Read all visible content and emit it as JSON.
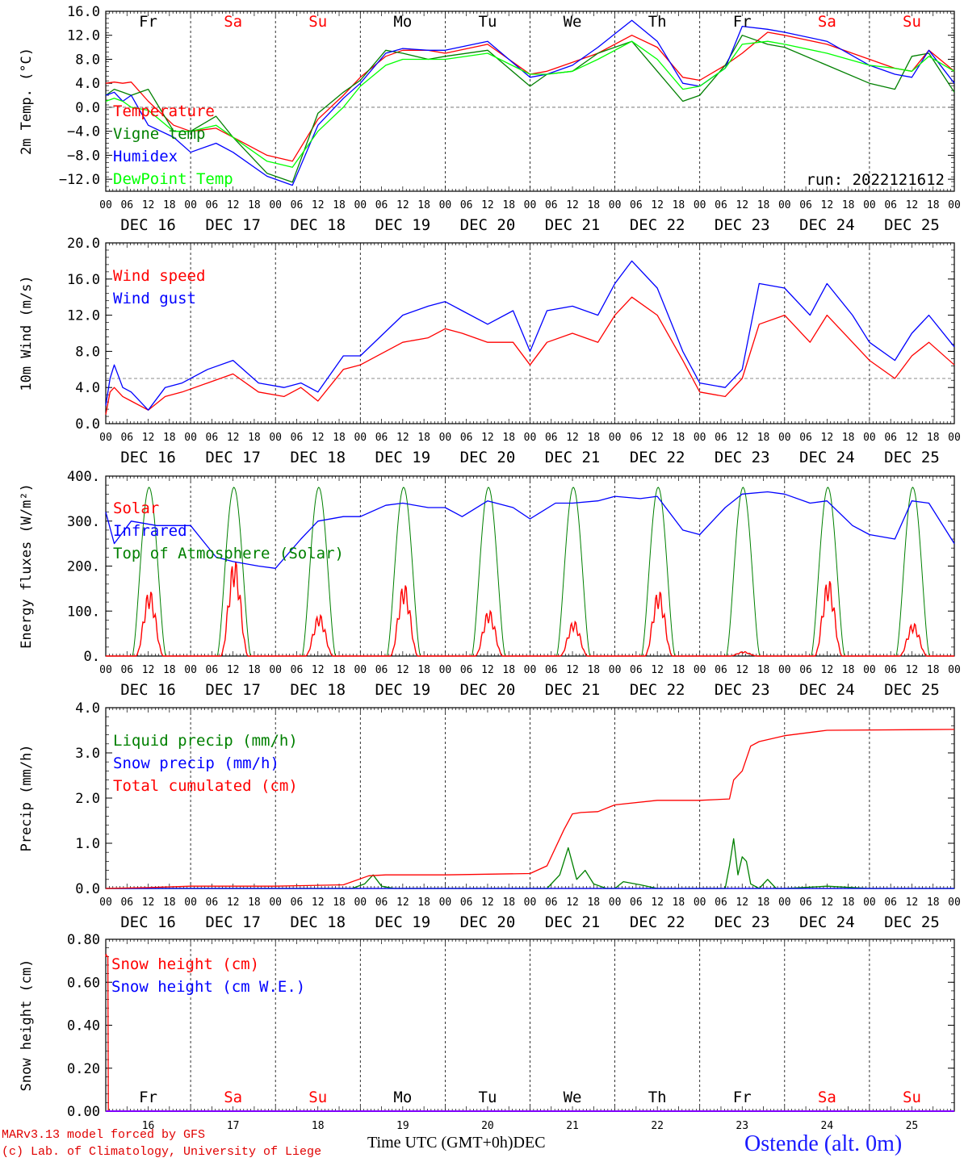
{
  "chart_data": {
    "type": "line",
    "run_label": "run: 2022121612",
    "time_axis": {
      "hours": [
        "00",
        "06",
        "12",
        "18"
      ],
      "final_hour": "00",
      "dates": [
        "DEC 16",
        "DEC 17",
        "DEC 18",
        "DEC 19",
        "DEC 20",
        "DEC 21",
        "DEC 22",
        "DEC 23",
        "DEC 24",
        "DEC 25"
      ],
      "weekdays": [
        "Fr",
        "Sa",
        "Su",
        "Mo",
        "Tu",
        "We",
        "Th",
        "Fr",
        "Sa",
        "Su"
      ],
      "weekend_flags": [
        false,
        true,
        true,
        false,
        false,
        false,
        false,
        false,
        true,
        true
      ],
      "day_numbers": [
        "16",
        "17",
        "18",
        "19",
        "20",
        "21",
        "22",
        "23",
        "24",
        "25"
      ],
      "month": "DEC",
      "xlabel": "Time UTC (GMT+0h)"
    },
    "panels": [
      {
        "ylabel": "2m Temp. (°C)",
        "ylim": [
          -14,
          16
        ],
        "ticks": [
          "16.0",
          "12.0",
          "8.0",
          "4.0",
          "0.0",
          "−4.0",
          "−8.0",
          "−12.0"
        ],
        "tick_values": [
          16,
          12,
          8,
          4,
          0,
          -4,
          -8,
          -12
        ],
        "ref_line": 0,
        "series": [
          {
            "name": "Temperature",
            "color": "#ff0000",
            "x": [
              0,
              0.1,
              0.2,
              0.3,
              0.5,
              0.8,
              1.0,
              1.3,
              1.5,
              1.9,
              2.2,
              2.5,
              2.8,
              3.0,
              3.3,
              3.5,
              3.8,
              4.0,
              4.5,
              5.0,
              5.2,
              5.5,
              5.8,
              6.2,
              6.5,
              6.8,
              7.0,
              7.3,
              7.5,
              7.8,
              8.0,
              8.5,
              9.0,
              9.3,
              9.5,
              9.7,
              10.0
            ],
            "y": [
              4,
              4.2,
              4.0,
              4.2,
              1.0,
              -3.0,
              -4.0,
              -3.5,
              -5.0,
              -8.0,
              -9.0,
              -2.0,
              2.0,
              5.0,
              8.5,
              9.5,
              9.5,
              9.0,
              10.5,
              5.5,
              6.0,
              7.5,
              9.0,
              12.0,
              10.0,
              5.0,
              4.5,
              7.0,
              9.0,
              12.5,
              12.0,
              10.5,
              8.0,
              6.5,
              6.0,
              9.5,
              6.0
            ]
          },
          {
            "name": "Vigne temp",
            "color": "#008000",
            "x": [
              0,
              0.1,
              0.2,
              0.3,
              0.5,
              0.8,
              1.0,
              1.3,
              1.5,
              1.9,
              2.2,
              2.5,
              2.8,
              3.0,
              3.3,
              3.5,
              3.8,
              4.0,
              4.5,
              5.0,
              5.2,
              5.5,
              5.8,
              6.2,
              6.5,
              6.8,
              7.0,
              7.3,
              7.5,
              7.8,
              8.0,
              8.5,
              9.0,
              9.3,
              9.5,
              9.7,
              10.0
            ],
            "y": [
              2,
              3.0,
              2.5,
              2.0,
              3.0,
              -4.0,
              -4.0,
              -1.5,
              -5.0,
              -11.0,
              -12.5,
              -1.0,
              2.5,
              4.5,
              9.5,
              9.0,
              8.0,
              8.5,
              9.5,
              3.5,
              5.5,
              6.0,
              9.0,
              11.0,
              6.0,
              1.0,
              2.0,
              7.0,
              12.0,
              10.5,
              10.0,
              7.0,
              4.0,
              3.0,
              8.5,
              9.0,
              2.5
            ]
          },
          {
            "name": "Humidex",
            "color": "#0000ff",
            "x": [
              0,
              0.1,
              0.2,
              0.3,
              0.5,
              0.8,
              1.0,
              1.3,
              1.5,
              1.9,
              2.2,
              2.5,
              2.8,
              3.0,
              3.3,
              3.5,
              3.8,
              4.0,
              4.5,
              5.0,
              5.2,
              5.5,
              5.8,
              6.2,
              6.5,
              6.8,
              7.0,
              7.3,
              7.5,
              7.8,
              8.0,
              8.5,
              9.0,
              9.3,
              9.5,
              9.7,
              10.0
            ],
            "y": [
              2,
              2.5,
              1.0,
              2.0,
              -3.0,
              -5.0,
              -7.5,
              -6.0,
              -7.5,
              -11.5,
              -13.0,
              -3.0,
              1.5,
              4.0,
              9.0,
              9.8,
              9.5,
              9.5,
              11.0,
              5.0,
              5.5,
              7.0,
              10.0,
              14.5,
              11.0,
              4.0,
              3.5,
              6.5,
              13.5,
              13.0,
              12.5,
              11.0,
              7.0,
              5.5,
              5.0,
              9.5,
              4.0
            ]
          },
          {
            "name": "DewPoint Temp",
            "color": "#00ff00",
            "x": [
              0,
              0.1,
              0.2,
              0.3,
              0.5,
              0.8,
              1.0,
              1.3,
              1.5,
              1.9,
              2.2,
              2.5,
              2.8,
              3.0,
              3.3,
              3.5,
              3.8,
              4.0,
              4.5,
              5.0,
              5.2,
              5.5,
              5.8,
              6.2,
              6.5,
              6.8,
              7.0,
              7.3,
              7.5,
              7.8,
              8.0,
              8.5,
              9.0,
              9.3,
              9.5,
              9.7,
              10.0
            ],
            "y": [
              1,
              1.5,
              1.0,
              0.0,
              -0.5,
              -4.0,
              -4.0,
              -3.0,
              -5.0,
              -9.0,
              -10.0,
              -4.0,
              0.0,
              3.5,
              7.0,
              8.0,
              8.0,
              8.0,
              9.0,
              5.5,
              5.5,
              6.0,
              8.0,
              11.0,
              8.0,
              3.0,
              3.5,
              6.5,
              10.5,
              11.0,
              10.5,
              9.0,
              7.0,
              6.5,
              6.0,
              8.5,
              6.0
            ]
          }
        ],
        "legend": [
          "Temperature",
          "Vigne temp",
          "Humidex",
          "DewPoint Temp"
        ],
        "legend_colors": [
          "#ff0000",
          "#008000",
          "#0000ff",
          "#00ff00"
        ]
      },
      {
        "ylabel": "10m Wind (m/s)",
        "ylim": [
          0,
          20
        ],
        "ticks": [
          "20.0",
          "16.0",
          "12.0",
          "8.0",
          "4.0",
          "0.0"
        ],
        "tick_values": [
          20,
          16,
          12,
          8,
          4,
          0
        ],
        "ref_line": 5,
        "series": [
          {
            "name": "Wind speed",
            "color": "#ff0000",
            "x": [
              0,
              0.05,
              0.1,
              0.2,
              0.3,
              0.5,
              0.7,
              0.9,
              1.2,
              1.5,
              1.8,
              2.1,
              2.3,
              2.5,
              2.8,
              3.0,
              3.5,
              3.8,
              4.0,
              4.2,
              4.5,
              4.8,
              5.0,
              5.2,
              5.5,
              5.8,
              6.0,
              6.2,
              6.5,
              6.8,
              7.0,
              7.3,
              7.5,
              7.7,
              8.0,
              8.3,
              8.5,
              8.8,
              9.0,
              9.3,
              9.5,
              9.7,
              10.0
            ],
            "y": [
              1,
              3.5,
              4.0,
              3.0,
              2.5,
              1.5,
              3.0,
              3.5,
              4.5,
              5.5,
              3.5,
              3.0,
              4.0,
              2.5,
              6.0,
              6.5,
              9.0,
              9.5,
              10.5,
              10.0,
              9.0,
              9.0,
              6.5,
              9.0,
              10.0,
              9.0,
              12.0,
              14.0,
              12.0,
              7.0,
              3.5,
              3.0,
              5.0,
              11.0,
              12.0,
              9.0,
              12.0,
              9.0,
              7.0,
              5.0,
              7.5,
              9.0,
              6.5
            ]
          },
          {
            "name": "Wind gust",
            "color": "#0000ff",
            "x": [
              0,
              0.05,
              0.1,
              0.2,
              0.3,
              0.5,
              0.7,
              0.9,
              1.2,
              1.5,
              1.8,
              2.1,
              2.3,
              2.5,
              2.8,
              3.0,
              3.5,
              3.8,
              4.0,
              4.2,
              4.5,
              4.8,
              5.0,
              5.2,
              5.5,
              5.8,
              6.0,
              6.2,
              6.5,
              6.8,
              7.0,
              7.3,
              7.5,
              7.7,
              8.0,
              8.3,
              8.5,
              8.8,
              9.0,
              9.3,
              9.5,
              9.7,
              10.0
            ],
            "y": [
              2,
              5.0,
              6.5,
              4.0,
              3.5,
              1.5,
              4.0,
              4.5,
              6.0,
              7.0,
              4.5,
              4.0,
              4.5,
              3.5,
              7.5,
              7.5,
              12.0,
              13.0,
              13.5,
              12.5,
              11.0,
              12.5,
              8.0,
              12.5,
              13.0,
              12.0,
              15.5,
              18.0,
              15.0,
              8.0,
              4.5,
              4.0,
              6.0,
              15.5,
              15.0,
              12.0,
              15.5,
              12.0,
              9.0,
              7.0,
              10.0,
              12.0,
              8.5
            ]
          }
        ],
        "legend": [
          "Wind speed",
          "Wind gust"
        ],
        "legend_colors": [
          "#ff0000",
          "#0000ff"
        ]
      },
      {
        "ylabel": "Energy fluxes (W/m²)",
        "ylim": [
          0,
          400
        ],
        "ticks": [
          "400.",
          "300.",
          "200.",
          "100.",
          "0."
        ],
        "tick_values": [
          400,
          300,
          200,
          100,
          0
        ],
        "ref_line": null,
        "solar_peaks": [
          150,
          220,
          95,
          165,
          105,
          80,
          150,
          10,
          175,
          75
        ],
        "toa_peak": 375,
        "series": [
          {
            "name": "Infrared",
            "color": "#0000ff",
            "x": [
              0,
              0.1,
              0.3,
              0.6,
              1.0,
              1.3,
              1.5,
              1.8,
              2.0,
              2.3,
              2.5,
              2.8,
              3.0,
              3.3,
              3.5,
              3.8,
              4.0,
              4.2,
              4.5,
              4.8,
              5.0,
              5.3,
              5.5,
              5.8,
              6.0,
              6.3,
              6.5,
              6.8,
              7.0,
              7.3,
              7.5,
              7.8,
              8.0,
              8.3,
              8.5,
              8.8,
              9.0,
              9.3,
              9.5,
              9.7,
              10.0
            ],
            "y": [
              320,
              250,
              300,
              290,
              290,
              220,
              210,
              200,
              195,
              260,
              300,
              310,
              310,
              335,
              340,
              330,
              330,
              310,
              345,
              330,
              305,
              340,
              340,
              345,
              355,
              350,
              355,
              280,
              270,
              330,
              360,
              365,
              360,
              340,
              345,
              290,
              270,
              260,
              345,
              340,
              250
            ]
          }
        ],
        "legend": [
          "Solar",
          "Infrared",
          "Top of Atmosphere (Solar)"
        ],
        "legend_colors": [
          "#ff0000",
          "#0000ff",
          "#008000"
        ]
      },
      {
        "ylabel": "Precip (mm/h)",
        "ylim": [
          0,
          4
        ],
        "ticks": [
          "4.0",
          "3.0",
          "2.0",
          "1.0",
          "0.0"
        ],
        "tick_values": [
          4,
          3,
          2,
          1,
          0
        ],
        "ref_line": null,
        "series": [
          {
            "name": "Liquid precip (mm/h)",
            "color": "#008000",
            "x": [
              0,
              2.9,
              3.05,
              3.15,
              3.25,
              3.4,
              5.2,
              5.35,
              5.45,
              5.55,
              5.65,
              5.75,
              5.9,
              6.0,
              6.1,
              6.3,
              6.5,
              7.3,
              7.35,
              7.4,
              7.45,
              7.5,
              7.55,
              7.6,
              7.7,
              7.8,
              7.9,
              8.0,
              8.5,
              9.0,
              10.0
            ],
            "y": [
              0,
              0,
              0.1,
              0.3,
              0.05,
              0,
              0,
              0.3,
              0.9,
              0.2,
              0.4,
              0.1,
              0,
              0,
              0.15,
              0.08,
              0,
              0,
              0.5,
              1.1,
              0.3,
              0.7,
              0.6,
              0.1,
              0,
              0.2,
              0,
              0,
              0.05,
              0,
              0
            ]
          },
          {
            "name": "Snow precip (mm/h)",
            "color": "#0000ff",
            "x": [
              0,
              10
            ],
            "y": [
              0,
              0
            ]
          },
          {
            "name": "Total cumulated (cm)",
            "color": "#ff0000",
            "x": [
              0,
              0.5,
              1.0,
              2.0,
              2.8,
              3.1,
              3.3,
              4.0,
              5.0,
              5.2,
              5.4,
              5.5,
              5.6,
              5.8,
              6.0,
              6.5,
              7.0,
              7.35,
              7.4,
              7.5,
              7.6,
              7.7,
              8.0,
              8.5,
              10.0
            ],
            "y": [
              0,
              0.02,
              0.05,
              0.05,
              0.08,
              0.28,
              0.3,
              0.3,
              0.33,
              0.5,
              1.3,
              1.65,
              1.68,
              1.7,
              1.85,
              1.95,
              1.95,
              1.98,
              2.4,
              2.6,
              3.15,
              3.25,
              3.38,
              3.5,
              3.52
            ]
          }
        ],
        "legend": [
          "Liquid precip (mm/h)",
          "Snow precip (mm/h)",
          "Total cumulated (cm)"
        ],
        "legend_colors": [
          "#008000",
          "#0000ff",
          "#ff0000"
        ]
      },
      {
        "ylabel": "Snow height (cm)",
        "ylim": [
          0,
          0.8
        ],
        "ticks": [
          "0.80",
          "0.60",
          "0.40",
          "0.20",
          "0.00"
        ],
        "tick_values": [
          0.8,
          0.6,
          0.4,
          0.2,
          0
        ],
        "ref_line": null,
        "series": [
          {
            "name": "Snow height (cm)",
            "color": "#ff0000",
            "x": [
              0,
              0.005,
              0.01,
              0.025,
              0.03,
              10
            ],
            "y": [
              0.72,
              0.73,
              0.72,
              0.72,
              0,
              0
            ]
          },
          {
            "name": "Snow height (cm W.E.)",
            "color": "#0000ff",
            "x": [
              0,
              10
            ],
            "y": [
              0,
              0
            ]
          }
        ],
        "legend": [
          "Snow height (cm)",
          "Snow height (cm W.E.)"
        ],
        "legend_colors": [
          "#ff0000",
          "#0000ff"
        ]
      }
    ]
  },
  "footer": {
    "model": "MARv3.13 model forced by GFS",
    "copyright": "(c) Lab. of Climatology, University of Liege",
    "station": "Ostende (alt. 0m)"
  }
}
